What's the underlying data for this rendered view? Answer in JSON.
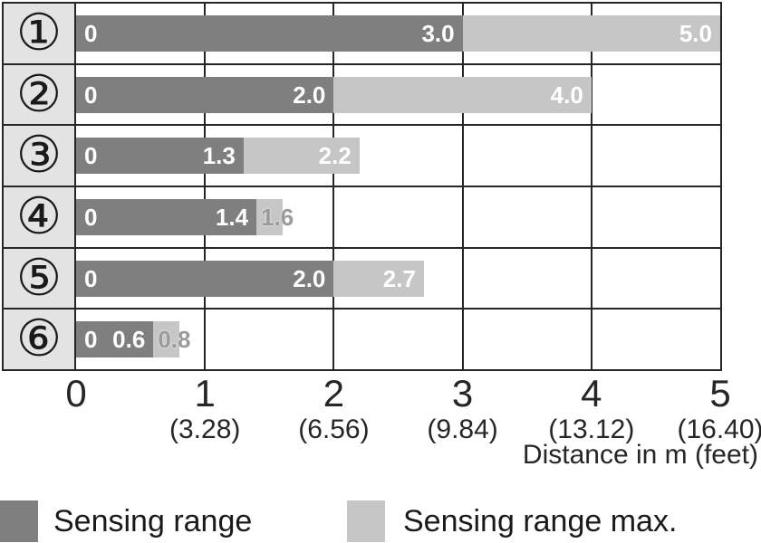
{
  "chart_data": {
    "type": "bar",
    "orientation": "horizontal",
    "xlabel": "Distance in m (feet)",
    "xlim": [
      0,
      5
    ],
    "grid": true,
    "x_ticks": [
      {
        "m": "0",
        "feet": ""
      },
      {
        "m": "1",
        "feet": "(3.28)"
      },
      {
        "m": "2",
        "feet": "(6.56)"
      },
      {
        "m": "3",
        "feet": "(9.84)"
      },
      {
        "m": "4",
        "feet": "(13.12)"
      },
      {
        "m": "5",
        "feet": "(16.40)"
      }
    ],
    "series_names": [
      "Sensing range",
      "Sensing range max."
    ],
    "rows": [
      {
        "category": "①",
        "sensing_range": 3.0,
        "sensing_range_max": 5.0,
        "start_label": "0",
        "range_label": "3.0",
        "max_label": "5.0",
        "max_label_placement": "inside"
      },
      {
        "category": "②",
        "sensing_range": 2.0,
        "sensing_range_max": 4.0,
        "start_label": "0",
        "range_label": "2.0",
        "max_label": "4.0",
        "max_label_placement": "inside"
      },
      {
        "category": "③",
        "sensing_range": 1.3,
        "sensing_range_max": 2.2,
        "start_label": "0",
        "range_label": "1.3",
        "max_label": "2.2",
        "max_label_placement": "inside"
      },
      {
        "category": "④",
        "sensing_range": 1.4,
        "sensing_range_max": 1.6,
        "start_label": "0",
        "range_label": "1.4",
        "max_label": "1.6",
        "max_label_placement": "outside"
      },
      {
        "category": "⑤",
        "sensing_range": 2.0,
        "sensing_range_max": 2.7,
        "start_label": "0",
        "range_label": "2.0",
        "max_label": "2.7",
        "max_label_placement": "inside"
      },
      {
        "category": "⑥",
        "sensing_range": 0.6,
        "sensing_range_max": 0.8,
        "start_label": "0",
        "range_label": "0.6",
        "max_label": "0.8",
        "max_label_placement": "outside"
      }
    ]
  },
  "colors": {
    "sensing_range": "#7f7f7f",
    "sensing_range_max": "#c6c6c6",
    "category_column_bg": "#e3e3e3",
    "grid_border": "#262626",
    "bar_label_inside": "#ffffff",
    "bar_label_outside": "#9b9b9b",
    "background": "#ffffff"
  },
  "legend": [
    {
      "label": "Sensing range",
      "color_key": "sensing_range"
    },
    {
      "label": "Sensing range max.",
      "color_key": "sensing_range_max"
    }
  ]
}
